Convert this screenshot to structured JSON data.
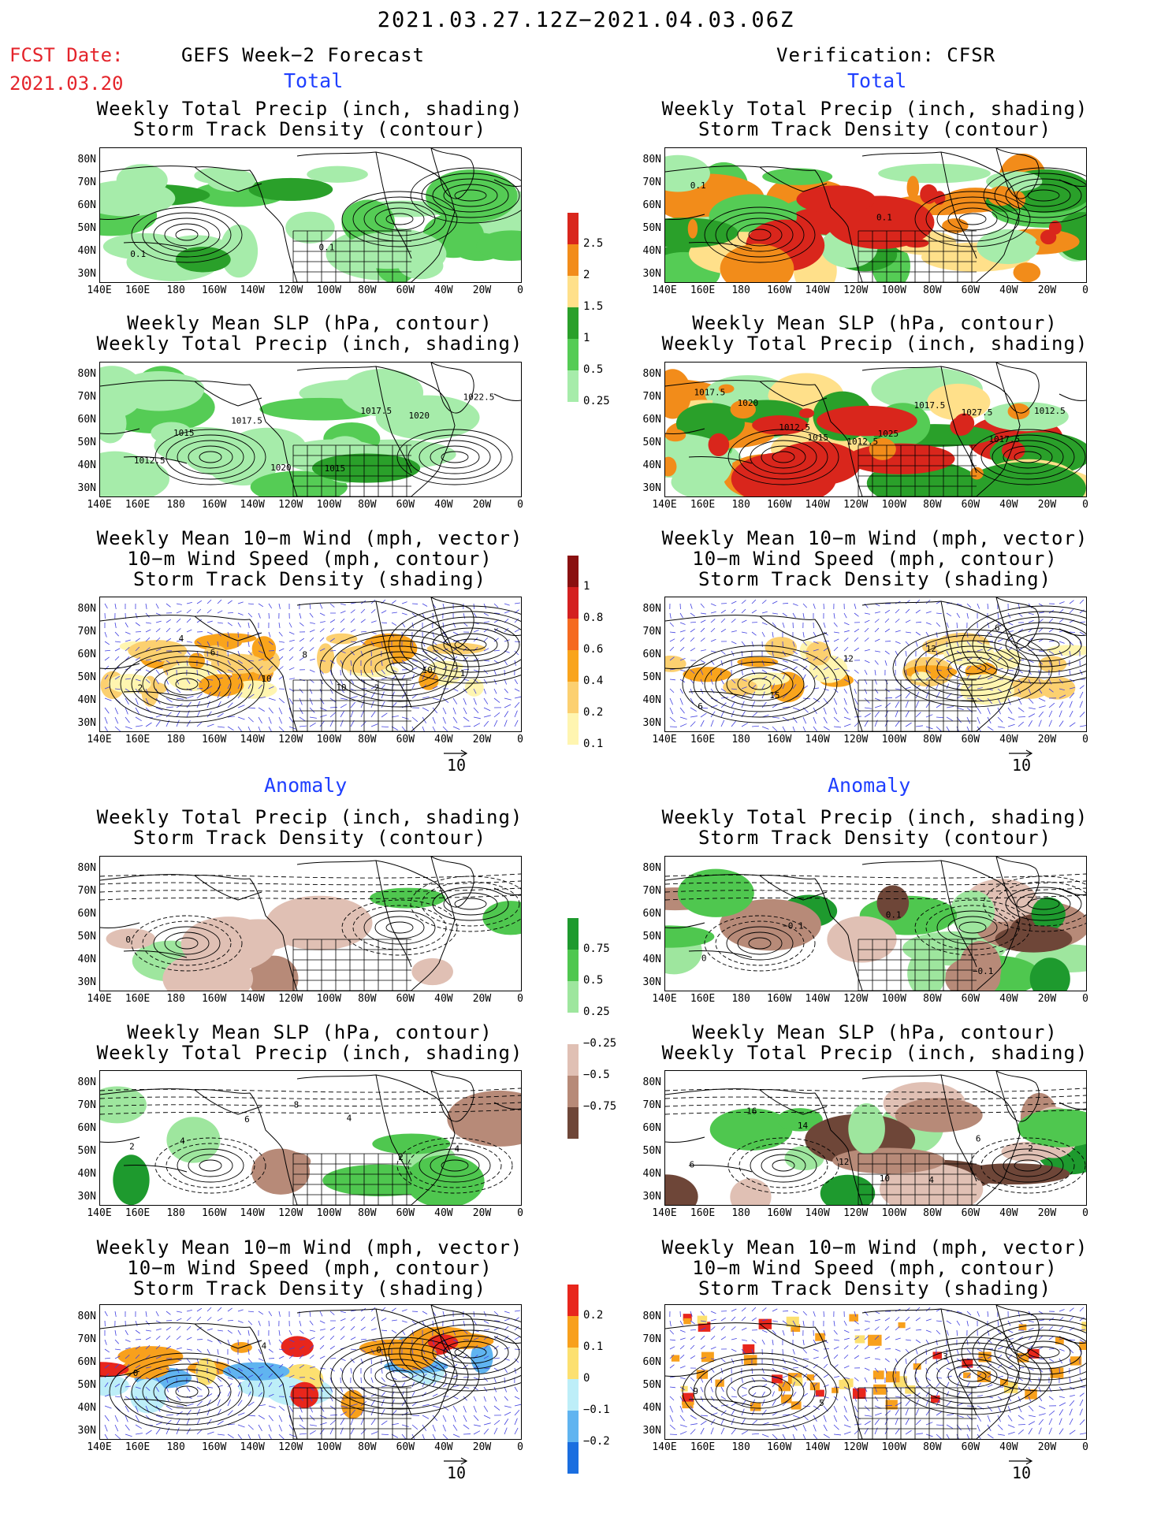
{
  "header": {
    "period": "2021.03.27.12Z−2021.04.03.06Z",
    "fcst_label": "FCST Date:",
    "fcst_date": "2021.03.20",
    "left_title": "GEFS Week−2 Forecast",
    "right_title": "Verification: CFSR"
  },
  "sections": {
    "total": "Total",
    "anomaly": "Anomaly"
  },
  "panel_titles": {
    "precip_storm": "Weekly Total Precip (inch, shading)\nStorm Track Density (contour)",
    "slp_precip": "Weekly Mean SLP (hPa, contour)\nWeekly Total Precip (inch, shading)",
    "wind_storm": "Weekly Mean 10−m Wind (mph, vector)\n10−m Wind Speed (mph, contour)\nStorm Track Density (shading)"
  },
  "axes": {
    "lat_labels": [
      "80N",
      "70N",
      "60N",
      "50N",
      "40N",
      "30N"
    ],
    "lon_labels": [
      "140E",
      "160E",
      "180",
      "160W",
      "140W",
      "120W",
      "100W",
      "80W",
      "60W",
      "40W",
      "20W",
      "0"
    ]
  },
  "vector_reference": "10",
  "colorbars": {
    "total_precip": {
      "labels": [
        "2.5",
        "2",
        "1.5",
        "1",
        "0.5",
        "0.25"
      ],
      "colors": [
        "#d9261c",
        "#f28c1a",
        "#ffe08a",
        "#2aa02a",
        "#55cc55",
        "#a6ecaa"
      ]
    },
    "total_storm": {
      "labels": [
        "1",
        "0.8",
        "0.6",
        "0.4",
        "0.2",
        "0.1"
      ],
      "colors": [
        "#8a1010",
        "#d42020",
        "#f56a20",
        "#f9a41c",
        "#fcd070",
        "#fff5b0"
      ]
    },
    "anom_precip": {
      "labels": [
        "0.75",
        "0.5",
        "0.25",
        "−0.25",
        "−0.5",
        "−0.75"
      ],
      "colors": [
        "#1e9a2e",
        "#4fc74f",
        "#9ee69e",
        "#ffffff",
        "#e0c0b4",
        "#b78a78",
        "#6e4638"
      ]
    },
    "anom_storm": {
      "labels": [
        "0.2",
        "0.1",
        "0",
        "−0.1",
        "−0.2"
      ],
      "colors": [
        "#e8261c",
        "#f8a01c",
        "#fce070",
        "#bdeef8",
        "#60b4f0",
        "#1a6ee0"
      ]
    }
  },
  "contour_labels": {
    "fcst_total_storm": [
      "0.1",
      "0.1"
    ],
    "fcst_total_slp": [
      "1012.5",
      "1015",
      "1017.5",
      "1020",
      "1015",
      "1017.5",
      "1020",
      "1022.5"
    ],
    "fcst_total_wind": [
      "2",
      "4",
      "6",
      "10",
      "8",
      "10",
      "2",
      "10",
      "1"
    ],
    "verif_total_storm": [
      "0.1",
      "0.1"
    ],
    "verif_total_slp": [
      "1017.5",
      "1020",
      "1012.5",
      "1015",
      "1012.5",
      "1025",
      "1017.5",
      "1027.5",
      "1017.5",
      "1012.5"
    ],
    "verif_total_wind": [
      "6",
      "15",
      "12",
      "12",
      "6"
    ],
    "fcst_anom_storm": [
      "0"
    ],
    "fcst_anom_slp": [
      "2",
      "4",
      "6",
      "8",
      "4",
      "2",
      "4"
    ],
    "fcst_anom_wind": [
      "0",
      "4",
      "0"
    ],
    "verif_anom_storm": [
      "0",
      "−0.1",
      "0.1",
      "−0.1"
    ],
    "verif_anom_slp": [
      "6",
      "16",
      "14",
      "12",
      "10",
      "4",
      "6",
      "2"
    ],
    "verif_anom_wind": [
      "9",
      "5",
      "3"
    ]
  }
}
